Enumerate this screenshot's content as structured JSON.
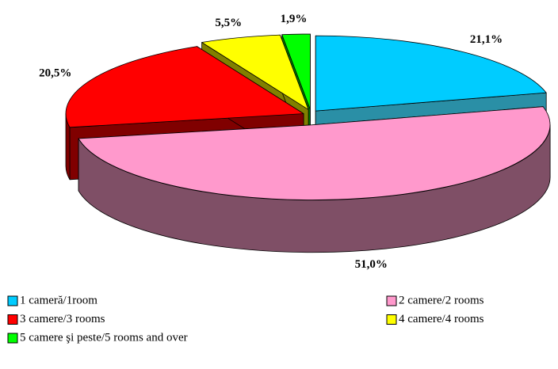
{
  "chart_data": {
    "type": "pie3d",
    "categories": [
      "1 cameră/1room",
      "2 camere/2 rooms",
      "3 camere/3 rooms",
      "4 camere/4 rooms",
      "5 camere şi peste/5 rooms and over"
    ],
    "values": [
      21.1,
      51.0,
      20.5,
      5.5,
      1.9
    ],
    "value_labels": [
      "21,1%",
      "51,0%",
      "20,5%",
      "5,5%",
      "1,9%"
    ],
    "colors": [
      "#00ccff",
      "#ff99cc",
      "#ff0000",
      "#ffff00",
      "#00ff00"
    ],
    "side_colors": [
      "#2a8fa6",
      "#7f4f66",
      "#800000",
      "#808000",
      "#008000"
    ]
  }
}
